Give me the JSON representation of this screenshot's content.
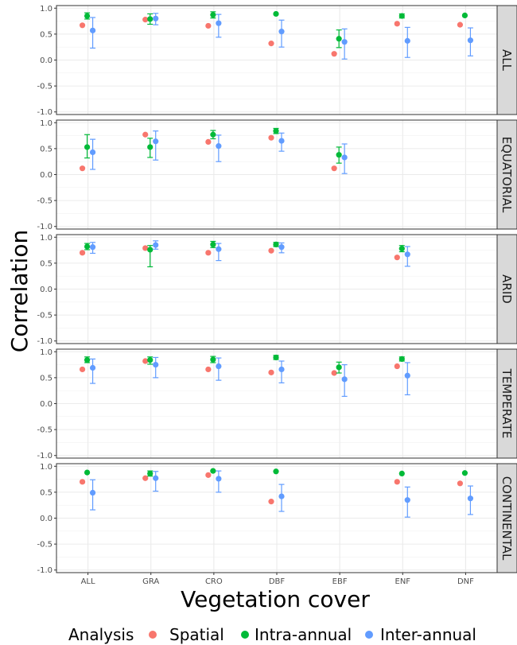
{
  "chart_data": {
    "type": "scatter",
    "xlabel": "Vegetation cover",
    "ylabel": "Correlation",
    "categories": [
      "ALL",
      "GRA",
      "CRO",
      "DBF",
      "EBF",
      "ENF",
      "DNF"
    ],
    "ylim": [
      -1.05,
      1.05
    ],
    "yticks": [
      -1.0,
      -0.5,
      0.0,
      0.5,
      1.0
    ],
    "ytick_labels": [
      "-1.0",
      "-0.5",
      "0.0",
      "0.5",
      "1.0"
    ],
    "grid": true,
    "legend": {
      "title": "Analysis",
      "position": "bottom",
      "entries": [
        {
          "name": "Spatial",
          "color": "#F8766D"
        },
        {
          "name": "Intra-annual",
          "color": "#00BA38"
        },
        {
          "name": "Inter-annual",
          "color": "#619CFF"
        }
      ]
    },
    "panels": [
      {
        "label": "ALL",
        "series": [
          {
            "name": "Spatial",
            "values": [
              0.67,
              0.78,
              0.66,
              0.32,
              0.12,
              0.7,
              0.68
            ],
            "lower": [
              null,
              null,
              null,
              null,
              null,
              null,
              null
            ],
            "upper": [
              null,
              null,
              null,
              null,
              null,
              null,
              null
            ]
          },
          {
            "name": "Intra-annual",
            "values": [
              0.85,
              0.79,
              0.87,
              0.89,
              0.41,
              0.85,
              0.86
            ],
            "lower": [
              0.79,
              0.69,
              0.81,
              null,
              0.24,
              0.81,
              null
            ],
            "upper": [
              0.91,
              0.89,
              0.93,
              null,
              0.58,
              0.89,
              null
            ]
          },
          {
            "name": "Inter-annual",
            "values": [
              0.57,
              0.8,
              0.71,
              0.55,
              0.35,
              0.37,
              0.38
            ],
            "lower": [
              0.23,
              0.68,
              0.44,
              0.25,
              0.02,
              0.05,
              0.08
            ],
            "upper": [
              0.82,
              0.9,
              0.88,
              0.77,
              0.6,
              0.63,
              0.62
            ]
          }
        ]
      },
      {
        "label": "EQUATORIAL",
        "series": [
          {
            "name": "Spatial",
            "values": [
              0.12,
              0.77,
              0.63,
              0.71,
              0.12,
              null,
              null
            ],
            "lower": [
              null,
              null,
              null,
              null,
              null,
              null,
              null
            ],
            "upper": [
              null,
              null,
              null,
              null,
              null,
              null,
              null
            ]
          },
          {
            "name": "Intra-annual",
            "values": [
              0.53,
              0.53,
              0.77,
              0.84,
              0.38,
              null,
              null
            ],
            "lower": [
              0.32,
              0.33,
              0.69,
              0.79,
              0.22,
              null,
              null
            ],
            "upper": [
              0.77,
              0.7,
              0.85,
              0.89,
              0.53,
              null,
              null
            ]
          },
          {
            "name": "Inter-annual",
            "values": [
              0.43,
              0.64,
              0.55,
              0.65,
              0.33,
              null,
              null
            ],
            "lower": [
              0.1,
              0.28,
              0.25,
              0.45,
              0.02,
              null,
              null
            ],
            "upper": [
              0.68,
              0.84,
              0.76,
              0.8,
              0.59,
              null,
              null
            ]
          }
        ]
      },
      {
        "label": "ARID",
        "series": [
          {
            "name": "Spatial",
            "values": [
              0.7,
              0.79,
              0.7,
              0.74,
              null,
              0.61,
              null
            ],
            "lower": [
              null,
              null,
              null,
              null,
              null,
              null,
              null
            ],
            "upper": [
              null,
              null,
              null,
              null,
              null,
              null,
              null
            ]
          },
          {
            "name": "Intra-annual",
            "values": [
              0.82,
              0.76,
              0.86,
              0.86,
              null,
              0.78,
              null
            ],
            "lower": [
              0.76,
              0.43,
              0.8,
              0.82,
              null,
              0.72,
              null
            ],
            "upper": [
              0.88,
              0.84,
              0.92,
              0.9,
              null,
              0.84,
              null
            ]
          },
          {
            "name": "Inter-annual",
            "values": [
              0.81,
              0.85,
              0.77,
              0.81,
              null,
              0.67,
              null
            ],
            "lower": [
              0.69,
              0.77,
              0.55,
              0.7,
              null,
              0.44,
              null
            ],
            "upper": [
              0.9,
              0.93,
              0.88,
              0.89,
              null,
              0.82,
              null
            ]
          }
        ]
      },
      {
        "label": "TEMPERATE",
        "series": [
          {
            "name": "Spatial",
            "values": [
              0.66,
              0.82,
              0.66,
              0.6,
              0.59,
              0.72,
              null
            ],
            "lower": [
              null,
              null,
              null,
              null,
              null,
              null,
              null
            ],
            "upper": [
              null,
              null,
              null,
              null,
              null,
              null,
              null
            ]
          },
          {
            "name": "Intra-annual",
            "values": [
              0.84,
              0.84,
              0.85,
              0.89,
              0.7,
              0.86,
              null
            ],
            "lower": [
              0.79,
              0.76,
              0.79,
              0.85,
              0.59,
              0.82,
              null
            ],
            "upper": [
              0.9,
              0.9,
              0.91,
              0.93,
              0.8,
              0.9,
              null
            ]
          },
          {
            "name": "Inter-annual",
            "values": [
              0.69,
              0.75,
              0.72,
              0.66,
              0.47,
              0.54,
              null
            ],
            "lower": [
              0.39,
              0.5,
              0.45,
              0.4,
              0.14,
              0.17,
              null
            ],
            "upper": [
              0.86,
              0.89,
              0.88,
              0.82,
              0.75,
              0.79,
              null
            ]
          }
        ]
      },
      {
        "label": "CONTINENTAL",
        "series": [
          {
            "name": "Spatial",
            "values": [
              0.7,
              0.77,
              0.83,
              0.32,
              null,
              0.7,
              0.67
            ],
            "lower": [
              null,
              null,
              null,
              null,
              null,
              null,
              null
            ],
            "upper": [
              null,
              null,
              null,
              null,
              null,
              null,
              null
            ]
          },
          {
            "name": "Intra-annual",
            "values": [
              0.88,
              0.86,
              0.91,
              0.9,
              null,
              0.86,
              0.87
            ],
            "lower": [
              null,
              0.81,
              null,
              null,
              null,
              null,
              null
            ],
            "upper": [
              null,
              0.91,
              null,
              null,
              null,
              null,
              null
            ]
          },
          {
            "name": "Inter-annual",
            "values": [
              0.49,
              0.77,
              0.76,
              0.42,
              null,
              0.35,
              0.38
            ],
            "lower": [
              0.16,
              0.52,
              0.5,
              0.13,
              null,
              0.02,
              0.07
            ],
            "upper": [
              0.74,
              0.9,
              0.91,
              0.65,
              null,
              0.6,
              0.62
            ]
          }
        ]
      }
    ]
  }
}
